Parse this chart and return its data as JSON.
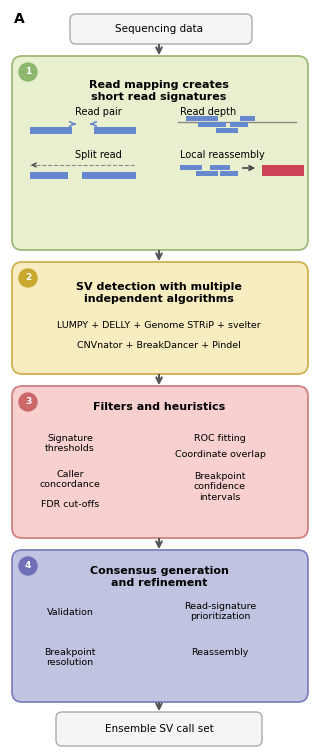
{
  "title_label": "A",
  "fig_bg": "#ffffff",
  "top_box": {
    "text": "Sequencing data",
    "bg": "#f5f5f5",
    "edge": "#aaaaaa"
  },
  "box1": {
    "number": "1",
    "number_bg": "#8db86e",
    "title": "Read mapping creates\nshort read signatures",
    "bg": "#e8f0d0",
    "edge": "#a0b878",
    "label1": "Read pair",
    "label2": "Read depth",
    "label3": "Split read",
    "label4": "Local reassembly"
  },
  "box2": {
    "number": "2",
    "number_bg": "#c8a830",
    "title": "SV detection with multiple\nindependent algorithms",
    "bg": "#f8edc0",
    "edge": "#d0b050",
    "line1": "LUMPY + DELLY + Genome STRiP + svelter",
    "line2": "CNVnator + BreakDancer + Pindel"
  },
  "box3": {
    "number": "3",
    "number_bg": "#cc6868",
    "title": "Filters and heuristics",
    "bg": "#f8d0d0",
    "edge": "#d08080",
    "left1": "Signature\nthresholds",
    "left2": "Caller\nconcordance",
    "left3": "FDR cut-offs",
    "right1": "ROC fitting",
    "right2": "Coordinate overlap",
    "right3": "Breakpoint\nconfidence\nintervals"
  },
  "box4": {
    "number": "4",
    "number_bg": "#7070b8",
    "title": "Consensus generation\nand refinement",
    "bg": "#c0c4e0",
    "edge": "#8080c0",
    "left1": "Validation",
    "left2": "Breakpoint\nresolution",
    "right1": "Read-signature\nprioritization",
    "right2": "Reassembly"
  },
  "bottom_box": {
    "text": "Ensemble SV call set",
    "bg": "#f5f5f5",
    "edge": "#aaaaaa"
  },
  "arrow_color": "#555555",
  "blue_bar": "#6688cc",
  "red_bar": "#cc4455"
}
